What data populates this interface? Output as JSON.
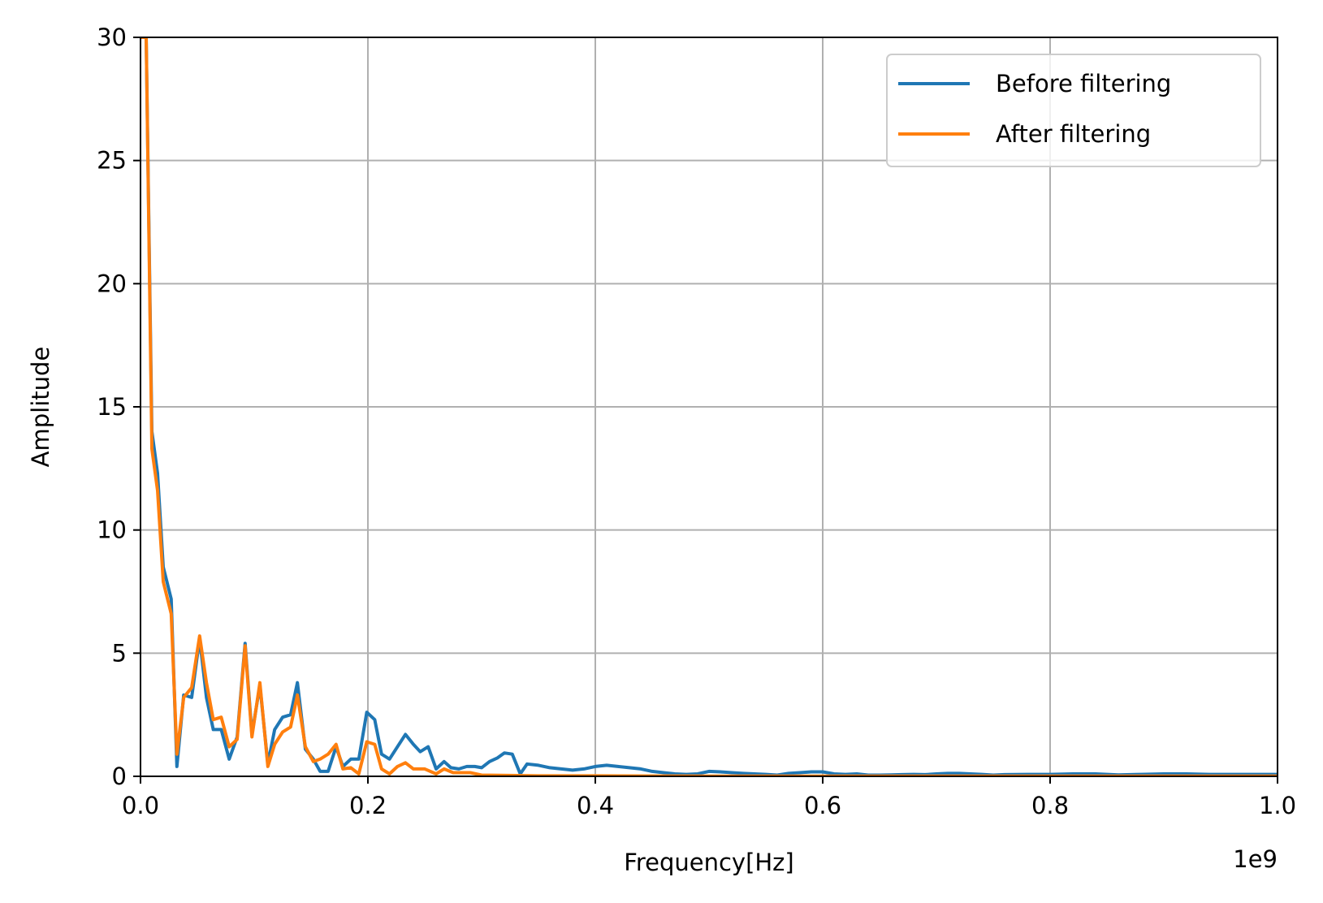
{
  "chart_data": {
    "type": "line",
    "xlabel": "Frequency[Hz]",
    "ylabel": "Amplitude",
    "x_offset_text": "1e9",
    "xlim": [
      0.0,
      1.0
    ],
    "ylim": [
      0,
      30
    ],
    "x_scale_note": "x values are in units of 1e9 Hz",
    "grid": true,
    "legend_position": "top-right",
    "x_ticks": [
      "0.0",
      "0.2",
      "0.4",
      "0.6",
      "0.8",
      "1.0"
    ],
    "y_ticks": [
      "0",
      "5",
      "10",
      "15",
      "20",
      "25",
      "30"
    ],
    "series": [
      {
        "name": "Before filtering",
        "color": "#1f77b4",
        "points": [
          [
            0.0,
            30.0
          ],
          [
            0.005,
            30.0
          ],
          [
            0.01,
            14.0
          ],
          [
            0.015,
            12.3
          ],
          [
            0.02,
            8.5
          ],
          [
            0.027,
            7.2
          ],
          [
            0.032,
            0.4
          ],
          [
            0.038,
            3.3
          ],
          [
            0.045,
            3.2
          ],
          [
            0.052,
            5.6
          ],
          [
            0.058,
            3.2
          ],
          [
            0.064,
            1.9
          ],
          [
            0.071,
            1.9
          ],
          [
            0.078,
            0.7
          ],
          [
            0.085,
            1.6
          ],
          [
            0.092,
            5.4
          ],
          [
            0.098,
            1.7
          ],
          [
            0.105,
            3.7
          ],
          [
            0.112,
            0.5
          ],
          [
            0.118,
            1.9
          ],
          [
            0.125,
            2.4
          ],
          [
            0.132,
            2.5
          ],
          [
            0.138,
            3.8
          ],
          [
            0.145,
            1.1
          ],
          [
            0.152,
            0.7
          ],
          [
            0.158,
            0.2
          ],
          [
            0.165,
            0.2
          ],
          [
            0.172,
            1.2
          ],
          [
            0.178,
            0.4
          ],
          [
            0.185,
            0.7
          ],
          [
            0.192,
            0.7
          ],
          [
            0.199,
            2.6
          ],
          [
            0.206,
            2.3
          ],
          [
            0.212,
            0.9
          ],
          [
            0.219,
            0.7
          ],
          [
            0.226,
            1.2
          ],
          [
            0.233,
            1.7
          ],
          [
            0.24,
            1.3
          ],
          [
            0.246,
            1.0
          ],
          [
            0.253,
            1.2
          ],
          [
            0.26,
            0.3
          ],
          [
            0.267,
            0.6
          ],
          [
            0.273,
            0.35
          ],
          [
            0.28,
            0.3
          ],
          [
            0.287,
            0.4
          ],
          [
            0.294,
            0.4
          ],
          [
            0.3,
            0.35
          ],
          [
            0.307,
            0.6
          ],
          [
            0.314,
            0.75
          ],
          [
            0.32,
            0.95
          ],
          [
            0.327,
            0.9
          ],
          [
            0.334,
            0.1
          ],
          [
            0.34,
            0.5
          ],
          [
            0.35,
            0.45
          ],
          [
            0.36,
            0.35
          ],
          [
            0.37,
            0.3
          ],
          [
            0.38,
            0.25
          ],
          [
            0.39,
            0.3
          ],
          [
            0.4,
            0.4
          ],
          [
            0.41,
            0.45
          ],
          [
            0.42,
            0.4
          ],
          [
            0.43,
            0.35
          ],
          [
            0.44,
            0.3
          ],
          [
            0.45,
            0.2
          ],
          [
            0.46,
            0.15
          ],
          [
            0.47,
            0.1
          ],
          [
            0.48,
            0.08
          ],
          [
            0.49,
            0.1
          ],
          [
            0.5,
            0.2
          ],
          [
            0.51,
            0.18
          ],
          [
            0.52,
            0.15
          ],
          [
            0.53,
            0.12
          ],
          [
            0.54,
            0.1
          ],
          [
            0.55,
            0.08
          ],
          [
            0.56,
            0.05
          ],
          [
            0.57,
            0.12
          ],
          [
            0.58,
            0.15
          ],
          [
            0.59,
            0.18
          ],
          [
            0.6,
            0.18
          ],
          [
            0.61,
            0.1
          ],
          [
            0.62,
            0.08
          ],
          [
            0.63,
            0.1
          ],
          [
            0.64,
            0.05
          ],
          [
            0.65,
            0.05
          ],
          [
            0.66,
            0.06
          ],
          [
            0.67,
            0.07
          ],
          [
            0.68,
            0.08
          ],
          [
            0.69,
            0.07
          ],
          [
            0.7,
            0.1
          ],
          [
            0.71,
            0.12
          ],
          [
            0.72,
            0.12
          ],
          [
            0.73,
            0.1
          ],
          [
            0.74,
            0.08
          ],
          [
            0.75,
            0.05
          ],
          [
            0.76,
            0.07
          ],
          [
            0.78,
            0.08
          ],
          [
            0.8,
            0.08
          ],
          [
            0.82,
            0.1
          ],
          [
            0.84,
            0.1
          ],
          [
            0.86,
            0.06
          ],
          [
            0.88,
            0.08
          ],
          [
            0.9,
            0.1
          ],
          [
            0.92,
            0.1
          ],
          [
            0.94,
            0.08
          ],
          [
            0.96,
            0.08
          ],
          [
            0.98,
            0.08
          ],
          [
            1.0,
            0.08
          ]
        ]
      },
      {
        "name": "After filtering",
        "color": "#ff7f0e",
        "points": [
          [
            0.0,
            30.0
          ],
          [
            0.005,
            30.0
          ],
          [
            0.01,
            13.3
          ],
          [
            0.015,
            11.6
          ],
          [
            0.02,
            7.9
          ],
          [
            0.027,
            6.6
          ],
          [
            0.032,
            0.9
          ],
          [
            0.038,
            3.2
          ],
          [
            0.045,
            3.6
          ],
          [
            0.052,
            5.7
          ],
          [
            0.058,
            3.8
          ],
          [
            0.064,
            2.3
          ],
          [
            0.071,
            2.4
          ],
          [
            0.078,
            1.2
          ],
          [
            0.085,
            1.5
          ],
          [
            0.092,
            5.3
          ],
          [
            0.098,
            1.6
          ],
          [
            0.105,
            3.8
          ],
          [
            0.112,
            0.4
          ],
          [
            0.118,
            1.3
          ],
          [
            0.125,
            1.8
          ],
          [
            0.132,
            2.0
          ],
          [
            0.138,
            3.3
          ],
          [
            0.145,
            1.2
          ],
          [
            0.152,
            0.6
          ],
          [
            0.158,
            0.7
          ],
          [
            0.165,
            0.9
          ],
          [
            0.172,
            1.3
          ],
          [
            0.178,
            0.3
          ],
          [
            0.185,
            0.35
          ],
          [
            0.192,
            0.1
          ],
          [
            0.199,
            1.4
          ],
          [
            0.206,
            1.3
          ],
          [
            0.212,
            0.3
          ],
          [
            0.219,
            0.1
          ],
          [
            0.226,
            0.4
          ],
          [
            0.233,
            0.55
          ],
          [
            0.24,
            0.3
          ],
          [
            0.25,
            0.3
          ],
          [
            0.26,
            0.1
          ],
          [
            0.267,
            0.3
          ],
          [
            0.275,
            0.15
          ],
          [
            0.29,
            0.15
          ],
          [
            0.3,
            0.05
          ],
          [
            0.35,
            0.02
          ],
          [
            0.4,
            0.02
          ],
          [
            0.5,
            0.01
          ],
          [
            0.6,
            0.01
          ],
          [
            0.7,
            0.01
          ],
          [
            0.8,
            0.01
          ],
          [
            0.9,
            0.01
          ],
          [
            1.0,
            0.01
          ]
        ]
      }
    ]
  }
}
